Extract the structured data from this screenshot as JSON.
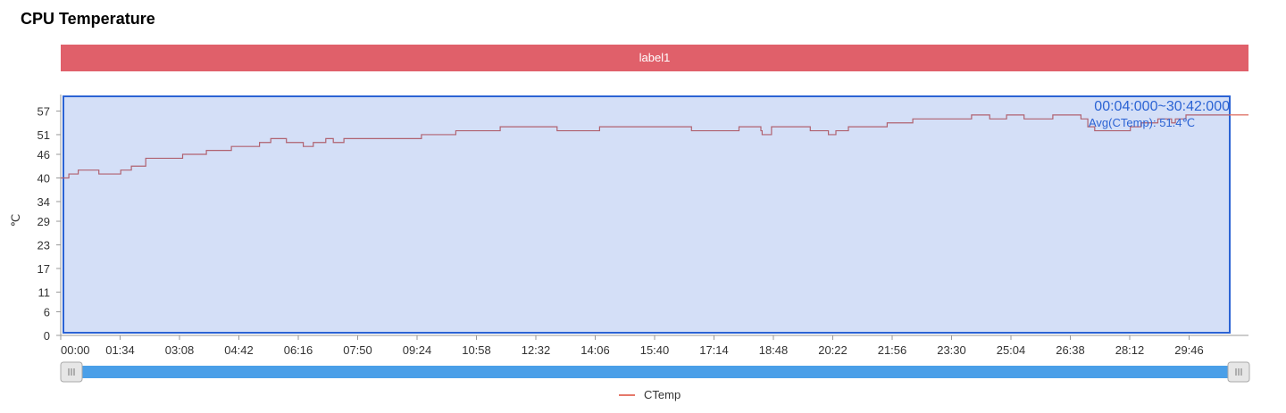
{
  "header": {
    "title": "CPU Temperature",
    "label_bar": "label1"
  },
  "colors": {
    "label_bar": "#e0606a",
    "series": "#b06270",
    "series_outside": "#e5786a",
    "selection_fill": "#d4dff7",
    "selection_border": "#2b63d4",
    "selection_text": "#2b63d4",
    "slider_track": "#4a9fe8",
    "slider_handle": "#e6e6e6",
    "axis": "#999999"
  },
  "selection": {
    "range_label": "00:04:000~30:42:000",
    "avg_label": "Avg(CTemp): 51.4℃"
  },
  "legend": {
    "label": "CTemp",
    "icon": "line-swatch-icon"
  },
  "slider": {
    "handle_icon": "grip-icon",
    "start": 0,
    "end": 1
  },
  "chart_data": {
    "type": "line",
    "title": "CPU Temperature",
    "ylabel": "℃",
    "xlabel": "",
    "y_ticks": [
      0,
      6,
      11,
      17,
      23,
      29,
      34,
      40,
      46,
      51,
      57
    ],
    "x_ticks": [
      "00:00",
      "01:34",
      "03:08",
      "04:42",
      "06:16",
      "07:50",
      "09:24",
      "10:58",
      "12:32",
      "14:06",
      "15:40",
      "17:14",
      "18:48",
      "20:22",
      "21:56",
      "23:30",
      "25:04",
      "26:38",
      "28:12",
      "29:46"
    ],
    "x_unit": "seconds",
    "xlim": [
      0,
      1900
    ],
    "ylim": [
      0,
      63
    ],
    "grid": false,
    "step": true,
    "series": [
      {
        "name": "CTemp",
        "x": [
          0,
          13,
          28,
          61,
          96,
          113,
          136,
          173,
          195,
          233,
          273,
          318,
          336,
          361,
          388,
          404,
          424,
          436,
          453,
          477,
          577,
          632,
          703,
          744,
          794,
          862,
          926,
          1009,
          1085,
          1120,
          1122,
          1137,
          1162,
          1199,
          1228,
          1240,
          1260,
          1283,
          1322,
          1363,
          1457,
          1486,
          1503,
          1513,
          1524,
          1541,
          1564,
          1587,
          1606,
          1620,
          1632,
          1643,
          1654,
          1711,
          1728,
          1755,
          1777,
          1783,
          1800,
          1900
        ],
        "y": [
          40,
          41,
          42,
          41,
          42,
          43,
          45,
          45,
          46,
          47,
          48,
          49,
          50,
          49,
          48,
          49,
          50,
          49,
          50,
          50,
          51,
          52,
          53,
          53,
          52,
          53,
          53,
          52,
          53,
          52,
          51,
          53,
          53,
          52,
          51,
          52,
          53,
          53,
          54,
          55,
          56,
          55,
          55,
          56,
          56,
          55,
          55,
          56,
          56,
          56,
          55,
          53,
          52,
          53,
          54,
          55,
          54,
          55,
          56,
          56
        ]
      }
    ]
  }
}
